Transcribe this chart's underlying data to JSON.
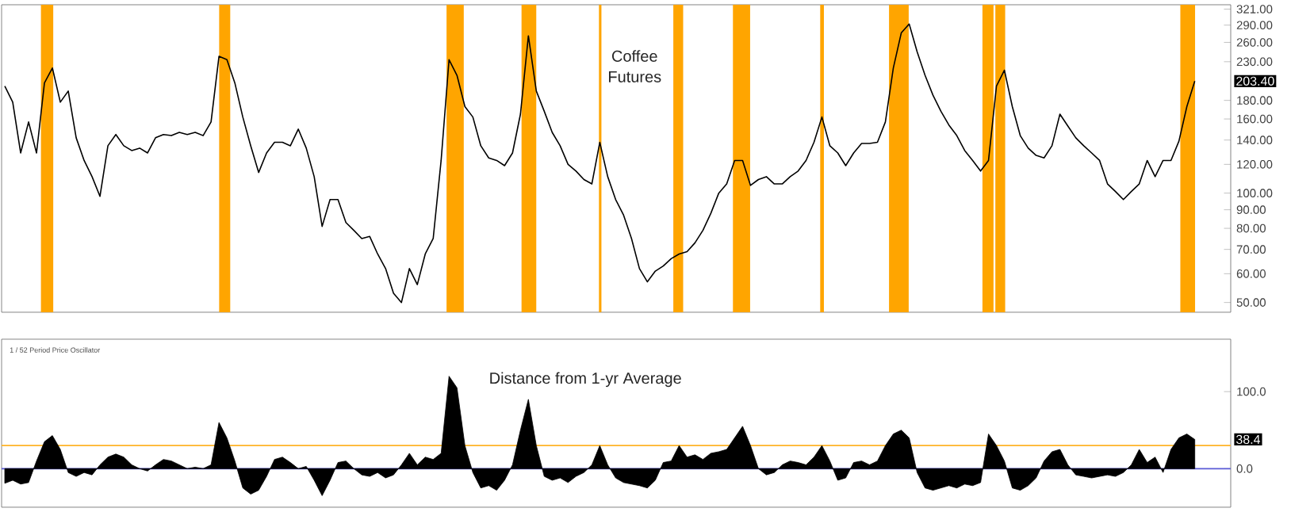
{
  "chart_data": [
    {
      "type": "line",
      "title": "Coffee Futures",
      "tick_labels": "y",
      "log": true,
      "categories": [
        null,
        null,
        null,
        null,
        null,
        null,
        null,
        null,
        null,
        null,
        null,
        null,
        null,
        null,
        null,
        null,
        null,
        null,
        null,
        null,
        null,
        null,
        null,
        null,
        null,
        null,
        null,
        null,
        null,
        null,
        null,
        null,
        null,
        null,
        null,
        null,
        null,
        null,
        null,
        null,
        null,
        null,
        null,
        null,
        null,
        null,
        null,
        null,
        null,
        null,
        null,
        null,
        null,
        null,
        null,
        null,
        null,
        null,
        null,
        null,
        null,
        null,
        null,
        null,
        null,
        null,
        null,
        null,
        null,
        null,
        null,
        null,
        null,
        null,
        null,
        null,
        null,
        null,
        null,
        null,
        null,
        null,
        null,
        null,
        null,
        null,
        null,
        null,
        null,
        null,
        null,
        null,
        null,
        null,
        null,
        null,
        null,
        null,
        null,
        null,
        null,
        null,
        null,
        null,
        null,
        null,
        null,
        null,
        null,
        null,
        null,
        null,
        null,
        null,
        null,
        null,
        null,
        null,
        null,
        null,
        null,
        null,
        null,
        null,
        null,
        null,
        null,
        null,
        null,
        null,
        null,
        null,
        null,
        null,
        null,
        null,
        null,
        null,
        null,
        null,
        null,
        null,
        null,
        null,
        null,
        null,
        null,
        null,
        null,
        null,
        null
      ],
      "series": [
        {
          "color": "#000000",
          "values": [
            197,
            178,
            129,
            157,
            129,
            201,
            221,
            178,
            191,
            142,
            123,
            111,
            98,
            135,
            145,
            135,
            131,
            133,
            129,
            142,
            145,
            144,
            147,
            145,
            147,
            144,
            157,
            238,
            233,
            201,
            162,
            135,
            114,
            129,
            138,
            138,
            135,
            150,
            133,
            111,
            81,
            96,
            96,
            83,
            79,
            75,
            76,
            68,
            62,
            53,
            50,
            62,
            56,
            68,
            75,
            123,
            233,
            211,
            173,
            162,
            135,
            125,
            123,
            119,
            129,
            165,
            271,
            191,
            168,
            147,
            135,
            120,
            115,
            109,
            106,
            138,
            111,
            96,
            87,
            75,
            62,
            57,
            61,
            63,
            66,
            68,
            69,
            73,
            79,
            88,
            100,
            106,
            123,
            123,
            105,
            109,
            111,
            106,
            106,
            111,
            115,
            123,
            138,
            162,
            135,
            129,
            119,
            129,
            137,
            137,
            138,
            157,
            221,
            276,
            292,
            245,
            211,
            186,
            168,
            154,
            144,
            131,
            123,
            115,
            123,
            197,
            218,
            173,
            144,
            133,
            127,
            125,
            135,
            165,
            153,
            142,
            135,
            129,
            123,
            106,
            101,
            96,
            101,
            106,
            123,
            111,
            123,
            123,
            139,
            173,
            203.4
          ]
        }
      ],
      "ylim": [
        47,
        330
      ],
      "yticks": [
        {
          "value": 50,
          "label": "50.00"
        },
        {
          "value": 60,
          "label": "60.00"
        },
        {
          "value": 70,
          "label": "70.00"
        },
        {
          "value": 80,
          "label": "80.00"
        },
        {
          "value": 90,
          "label": "90.00"
        },
        {
          "value": 100,
          "label": "100.00"
        },
        {
          "value": 120,
          "label": "120.00"
        },
        {
          "value": 140,
          "label": "140.00"
        },
        {
          "value": 160,
          "label": "160.00"
        },
        {
          "value": 180,
          "label": "180.00"
        },
        {
          "value": 230,
          "label": "230.00"
        },
        {
          "value": 260,
          "label": "260.00"
        },
        {
          "value": 290,
          "label": "290.00"
        },
        {
          "value": 321,
          "label": "321.00"
        }
      ],
      "annotations": [
        "203.40"
      ]
    },
    {
      "type": "area",
      "title": "Distance from 1-yr Average",
      "subtitle": "1 / 52 Period Price Oscillator",
      "tick_labels": "y",
      "categories": [
        null,
        null,
        null,
        null,
        null,
        null,
        null,
        null,
        null,
        null,
        null,
        null,
        null,
        null,
        null,
        null,
        null,
        null,
        null,
        null,
        null,
        null,
        null,
        null,
        null,
        null,
        null,
        null,
        null,
        null,
        null,
        null,
        null,
        null,
        null,
        null,
        null,
        null,
        null,
        null,
        null,
        null,
        null,
        null,
        null,
        null,
        null,
        null,
        null,
        null,
        null,
        null,
        null,
        null,
        null,
        null,
        null,
        null,
        null,
        null,
        null,
        null,
        null,
        null,
        null,
        null,
        null,
        null,
        null,
        null,
        null,
        null,
        null,
        null,
        null,
        null,
        null,
        null,
        null,
        null,
        null,
        null,
        null,
        null,
        null,
        null,
        null,
        null,
        null,
        null,
        null,
        null,
        null,
        null,
        null,
        null,
        null,
        null,
        null,
        null,
        null,
        null,
        null,
        null,
        null,
        null,
        null,
        null,
        null,
        null,
        null,
        null,
        null,
        null,
        null,
        null,
        null,
        null,
        null,
        null,
        null,
        null,
        null,
        null,
        null,
        null,
        null,
        null,
        null,
        null,
        null,
        null,
        null,
        null,
        null,
        null,
        null,
        null,
        null,
        null,
        null,
        null,
        null,
        null,
        null,
        null,
        null,
        null,
        null,
        null,
        null
      ],
      "series": [
        {
          "color": "#000000",
          "values": [
            -19,
            -15,
            -20,
            -18,
            10,
            35,
            43,
            25,
            -5,
            -10,
            -5,
            -8,
            5,
            15,
            19,
            15,
            5,
            0,
            -3,
            5,
            12,
            10,
            5,
            0,
            2,
            0,
            5,
            60,
            40,
            10,
            -25,
            -33,
            -28,
            -10,
            12,
            15,
            8,
            0,
            3,
            -15,
            -35,
            -15,
            8,
            10,
            0,
            -8,
            -10,
            -5,
            -12,
            -8,
            5,
            20,
            5,
            15,
            12,
            20,
            120,
            105,
            30,
            -5,
            -25,
            -22,
            -28,
            -15,
            5,
            50,
            90,
            30,
            -10,
            -15,
            -12,
            -18,
            -10,
            -5,
            5,
            30,
            5,
            -12,
            -18,
            -20,
            -22,
            -25,
            -15,
            8,
            10,
            30,
            15,
            18,
            12,
            20,
            22,
            25,
            40,
            55,
            30,
            0,
            -8,
            -5,
            5,
            10,
            8,
            5,
            15,
            30,
            10,
            -15,
            -12,
            8,
            10,
            5,
            10,
            30,
            45,
            50,
            40,
            -5,
            -25,
            -28,
            -25,
            -22,
            -25,
            -20,
            -22,
            -18,
            45,
            30,
            10,
            -25,
            -28,
            -22,
            -12,
            10,
            22,
            25,
            5,
            -8,
            -10,
            -12,
            -10,
            -8,
            -10,
            -5,
            5,
            25,
            8,
            15,
            -5,
            25,
            40,
            45,
            38
          ]
        }
      ],
      "ylim": [
        -50,
        168
      ],
      "yticks": [
        {
          "value": 0,
          "label": "0.0"
        },
        {
          "value": 100,
          "label": "100.0"
        }
      ],
      "ref_lines": [
        {
          "axis": "y",
          "value": 0,
          "color": "#5b5bd6"
        },
        {
          "axis": "y",
          "value": 30,
          "color": "#ffb327"
        }
      ],
      "annotations": [
        "38.4"
      ]
    }
  ]
}
